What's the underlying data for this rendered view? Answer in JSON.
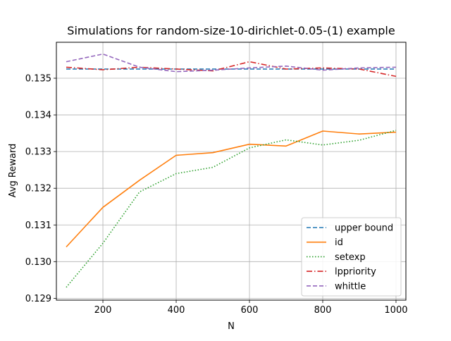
{
  "chart_data": {
    "type": "line",
    "title": "Simulations for random-size-10-dirichlet-0.05-(1) example",
    "xlabel": "N",
    "ylabel": "Avg Reward",
    "xlim": [
      73,
      1027
    ],
    "ylim": [
      0.12895,
      0.13598
    ],
    "xticks": [
      200,
      400,
      600,
      800,
      1000
    ],
    "xtick_labels": [
      "200",
      "400",
      "600",
      "800",
      "1000"
    ],
    "yticks": [
      0.129,
      0.13,
      0.131,
      0.132,
      0.133,
      0.134,
      0.135
    ],
    "ytick_labels": [
      "0.129",
      "0.130",
      "0.131",
      "0.132",
      "0.133",
      "0.134",
      "0.135"
    ],
    "grid": true,
    "legend_position": "lower-right",
    "x": [
      100,
      200,
      300,
      400,
      500,
      600,
      700,
      800,
      900,
      1000
    ],
    "series": [
      {
        "name": "upper bound",
        "color": "#1f77b4",
        "style": "dashed",
        "values": [
          0.13525,
          0.13525,
          0.13525,
          0.13525,
          0.13525,
          0.13525,
          0.13525,
          0.13525,
          0.13525,
          0.13525
        ]
      },
      {
        "name": "id",
        "color": "#ff7f0e",
        "style": "solid",
        "values": [
          0.1304,
          0.13148,
          0.13222,
          0.1329,
          0.13297,
          0.1332,
          0.13315,
          0.13356,
          0.13348,
          0.13353
        ]
      },
      {
        "name": "setexp",
        "color": "#2ca02c",
        "style": "dotted",
        "values": [
          0.1293,
          0.1305,
          0.1319,
          0.1324,
          0.13257,
          0.1331,
          0.13332,
          0.13318,
          0.13331,
          0.13358
        ]
      },
      {
        "name": "lppriority",
        "color": "#d62728",
        "style": "dashdot",
        "values": [
          0.1353,
          0.13523,
          0.1353,
          0.13525,
          0.1352,
          0.13545,
          0.13525,
          0.13528,
          0.13525,
          0.13505
        ]
      },
      {
        "name": "whittle",
        "color": "#9467bd",
        "style": "dashed",
        "values": [
          0.13545,
          0.13566,
          0.1353,
          0.13518,
          0.13522,
          0.13528,
          0.13533,
          0.13522,
          0.13528,
          0.1353
        ]
      }
    ]
  }
}
